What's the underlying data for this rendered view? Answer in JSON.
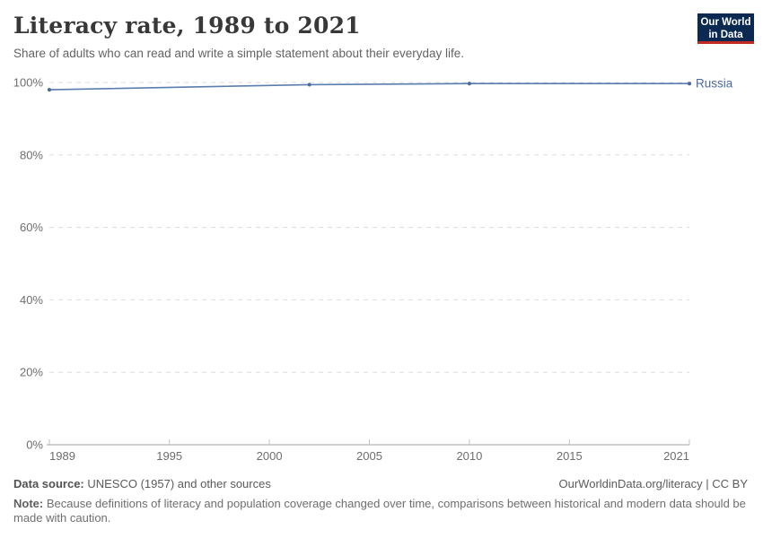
{
  "header": {
    "title": "Literacy rate, 1989 to 2021",
    "subtitle": "Share of adults who can read and write a simple statement about their everyday life.",
    "logo": {
      "line1": "Our World",
      "line2": "in Data",
      "bg_color": "#0c2a51",
      "accent_color": "#c32a22"
    }
  },
  "chart_data": {
    "type": "line",
    "title": "Literacy rate, 1989 to 2021",
    "xlabel": "",
    "ylabel": "",
    "xlim": [
      1989,
      2021
    ],
    "ylim": [
      0,
      100
    ],
    "x_ticks": [
      1989,
      1995,
      2000,
      2005,
      2010,
      2015,
      2021
    ],
    "y_ticks": [
      0,
      20,
      40,
      60,
      80,
      100
    ],
    "y_tick_suffix": "%",
    "grid": "horizontal-dashed",
    "legend_position": "end-of-line-label",
    "series": [
      {
        "name": "Russia",
        "color": "#4c6a9c",
        "line_color": "#5b7dae",
        "points": [
          {
            "year": 1989,
            "value": 98.0
          },
          {
            "year": 2002,
            "value": 99.4
          },
          {
            "year": 2010,
            "value": 99.7
          },
          {
            "year": 2021,
            "value": 99.7
          }
        ]
      }
    ]
  },
  "footer": {
    "datasource_label": "Data source:",
    "datasource_text": " UNESCO (1957) and other sources",
    "link_text": "OurWorldinData.org/literacy | CC BY",
    "note_label": "Note:",
    "note_text": " Because definitions of literacy and population coverage changed over time, comparisons between historical and modern data should be made with caution."
  },
  "colors": {
    "grid": "#dddddd",
    "axis": "#a1a1a1",
    "tick": "#c2c2c2",
    "tick_label": "#6e6e6e"
  }
}
